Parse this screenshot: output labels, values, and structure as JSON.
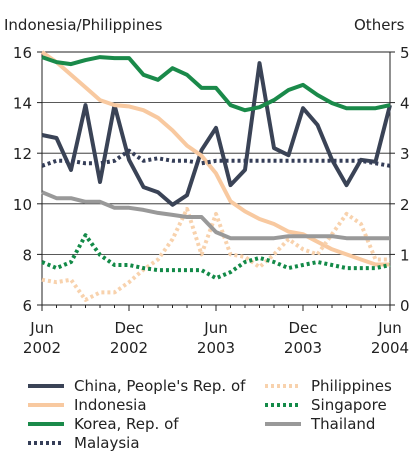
{
  "chart_data": {
    "type": "line",
    "y_label": "Indonesia/Philippines",
    "y2_label": "Others",
    "categories": [
      "Jun 2002",
      null,
      null,
      null,
      null,
      null,
      "Dec 2002",
      null,
      null,
      null,
      null,
      null,
      "Jun 2003",
      null,
      null,
      null,
      null,
      null,
      "Dec 2003",
      null,
      null,
      null,
      null,
      null,
      "Jun 2004"
    ],
    "ylim": [
      6,
      16
    ],
    "yticks": [
      6,
      8,
      10,
      12,
      14,
      16
    ],
    "y2lim": [
      0,
      5
    ],
    "y2ticks": [
      0,
      1,
      2,
      3,
      4,
      5
    ],
    "grid": true,
    "series": [
      {
        "name": "China, People's Rep. of",
        "color": "#3a4356",
        "axis": "y2",
        "style": "solid",
        "values": [
          3.36,
          3.3,
          2.67,
          3.95,
          2.43,
          3.95,
          2.87,
          2.33,
          2.23,
          1.98,
          2.17,
          3.06,
          3.5,
          2.37,
          2.67,
          4.78,
          3.1,
          2.96,
          3.89,
          3.56,
          2.87,
          2.37,
          2.87,
          2.83,
          3.95
        ]
      },
      {
        "name": "Indonesia",
        "color": "#f8c9a0",
        "style": "solid",
        "values": [
          16,
          15.6,
          15.1,
          14.6,
          14.1,
          13.9,
          13.85,
          13.7,
          13.4,
          12.9,
          12.3,
          11.9,
          11.2,
          10.1,
          9.7,
          9.4,
          9.2,
          8.9,
          8.8,
          8.5,
          8.2,
          8.0,
          7.8,
          7.6,
          7.6
        ]
      },
      {
        "name": "Korea, Rep. of",
        "color": "#1a8a4a",
        "axis": "y2",
        "style": "solid",
        "values": [
          4.9,
          4.8,
          4.76,
          4.84,
          4.9,
          4.88,
          4.88,
          4.55,
          4.45,
          4.68,
          4.55,
          4.29,
          4.29,
          3.95,
          3.85,
          3.91,
          4.05,
          4.25,
          4.35,
          4.15,
          3.99,
          3.89,
          3.89,
          3.89,
          3.95
        ]
      },
      {
        "name": "Malaysia",
        "color": "#353e58",
        "axis": "y2",
        "style": "dotted",
        "values": [
          2.75,
          2.85,
          2.85,
          2.8,
          2.8,
          2.85,
          3.05,
          2.85,
          2.9,
          2.85,
          2.85,
          2.8,
          2.85,
          2.85,
          2.85,
          2.85,
          2.85,
          2.85,
          2.85,
          2.85,
          2.85,
          2.85,
          2.85,
          2.8,
          2.75
        ]
      },
      {
        "name": "Philippines",
        "color": "#f8d2ad",
        "style": "dotted",
        "values": [
          7.0,
          6.9,
          7.0,
          6.2,
          6.5,
          6.5,
          6.9,
          7.4,
          7.8,
          8.6,
          9.8,
          8.0,
          9.6,
          8.0,
          7.9,
          7.5,
          8.0,
          8.6,
          8.2,
          8.0,
          8.8,
          9.6,
          9.2,
          7.8,
          7.8
        ]
      },
      {
        "name": "Singapore",
        "color": "#138a48",
        "axis": "y2",
        "style": "dotted",
        "values": [
          0.85,
          0.73,
          0.85,
          1.38,
          0.99,
          0.79,
          0.79,
          0.73,
          0.69,
          0.69,
          0.69,
          0.69,
          0.53,
          0.65,
          0.85,
          0.93,
          0.85,
          0.73,
          0.79,
          0.85,
          0.79,
          0.73,
          0.73,
          0.73,
          0.79
        ]
      },
      {
        "name": "Thailand",
        "color": "#999999",
        "axis": "y2",
        "style": "solid",
        "values": [
          2.23,
          2.11,
          2.11,
          2.04,
          2.04,
          1.92,
          1.92,
          1.88,
          1.82,
          1.78,
          1.74,
          1.74,
          1.44,
          1.32,
          1.32,
          1.32,
          1.32,
          1.36,
          1.36,
          1.36,
          1.36,
          1.32,
          1.32,
          1.32,
          1.32
        ]
      }
    ]
  }
}
